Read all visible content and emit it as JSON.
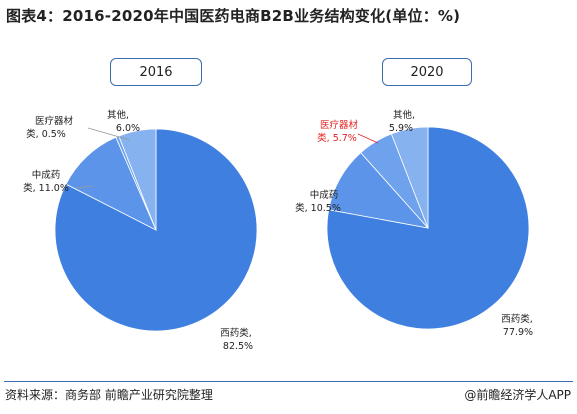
{
  "header": {
    "title": "图表4：2016-2020年中国医药电商B2B业务结构变化(单位：%)"
  },
  "chart_data": [
    {
      "type": "pie",
      "title": "2016",
      "slices": [
        {
          "name": "西药类",
          "value": 82.5,
          "label_text": "82.5%",
          "color": "#3e7fe0"
        },
        {
          "name": "中成药类",
          "value": 11.0,
          "label_text": "11.0%",
          "color": "#5b94e8"
        },
        {
          "name": "医疗器材类",
          "value": 0.5,
          "label_text": "0.5%",
          "color": "#6fa2ec"
        },
        {
          "name": "其他",
          "value": 6.0,
          "label_text": "6.0%",
          "color": "#86b2ef"
        }
      ]
    },
    {
      "type": "pie",
      "title": "2020",
      "slices": [
        {
          "name": "西药类",
          "value": 77.9,
          "label_text": "77.9%",
          "color": "#3e7fe0"
        },
        {
          "name": "中成药类",
          "value": 10.5,
          "label_text": "10.5%",
          "color": "#5b94e8"
        },
        {
          "name": "医疗器材类",
          "value": 5.7,
          "label_text": "5.7%",
          "color": "#6fa2ec",
          "highlight": true
        },
        {
          "name": "其他",
          "value": 5.9,
          "label_text": "5.9%",
          "color": "#86b2ef"
        }
      ]
    }
  ],
  "labels_2016": {
    "western": [
      "西药类,",
      "82.5%"
    ],
    "tcm": [
      "中成药",
      "类, 11.0%"
    ],
    "device": [
      "医疗器材",
      "类, 0.5%"
    ],
    "other": [
      "其他,",
      "6.0%"
    ]
  },
  "labels_2020": {
    "western": [
      "西药类,",
      "77.9%"
    ],
    "tcm": [
      "中成药",
      "类, 10.5%"
    ],
    "device": [
      "医疗器材",
      "类, 5.7%"
    ],
    "other": [
      "其他,",
      "5.9%"
    ]
  },
  "footer": {
    "source": "资料来源：商务部 前瞻产业研究院整理",
    "brand": "@前瞻经济学人APP"
  },
  "colors": {
    "accent": "#3e6db0",
    "highlight_text": "#e52222"
  }
}
